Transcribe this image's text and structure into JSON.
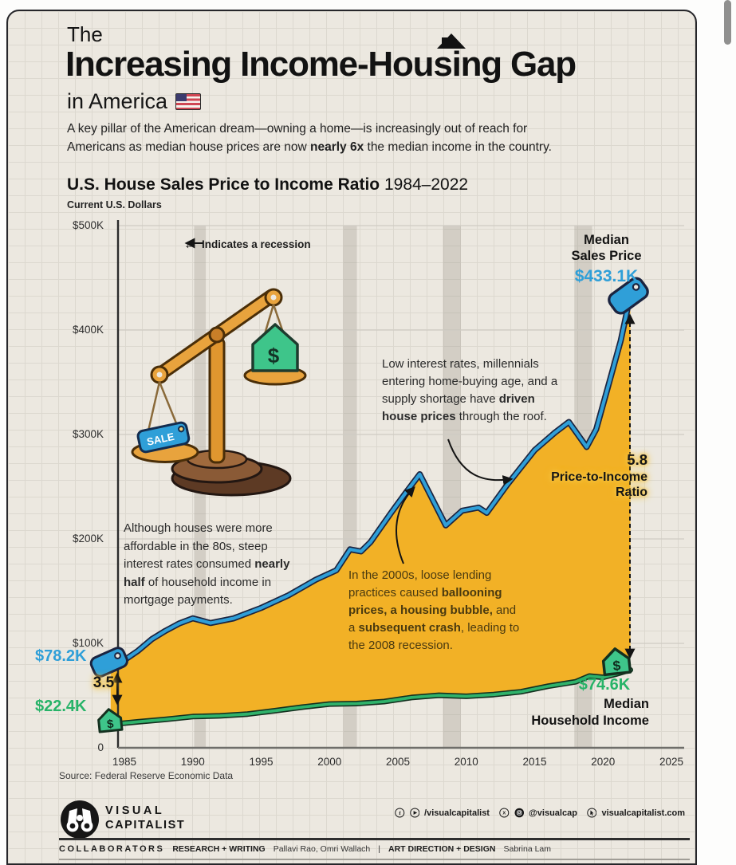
{
  "header": {
    "kicker": "The",
    "title": "Increasing Income-Housing Gap",
    "subtitle": "in America",
    "intro_parts": [
      {
        "t": "A key pillar of the American dream—owning a home—is increasingly out of reach for Americans as median house prices are now "
      },
      {
        "t": "nearly 6x",
        "b": true
      },
      {
        "t": " the median income in the country."
      }
    ]
  },
  "chart_heading": {
    "title": "U.S. House Sales Price to Income Ratio",
    "years": "1984–2022",
    "unit": "Current U.S. Dollars"
  },
  "chart_data": {
    "type": "area",
    "title": "U.S. House Sales Price to Income Ratio 1984–2022",
    "ylabel": "Current U.S. Dollars",
    "xlim": [
      1984,
      2025.5
    ],
    "ylim_thousands_usd": [
      0,
      500
    ],
    "grid": true,
    "fill_between_color": "#F2B126",
    "x_ticks": [
      "1985",
      "1990",
      "1995",
      "2000",
      "2005",
      "2010",
      "2015",
      "2020",
      "2025"
    ],
    "x_tick_values": [
      1985,
      1990,
      1995,
      2000,
      2005,
      2010,
      2015,
      2020,
      2025
    ],
    "y_ticks": [
      "$500K",
      "$400K",
      "$300K",
      "$200K",
      "$100K",
      "0"
    ],
    "y_tick_values": [
      500,
      400,
      300,
      200,
      100,
      0
    ],
    "recession_bands_years": [
      [
        1990.1,
        1990.95
      ],
      [
        2001.0,
        2002.0
      ],
      [
        2008.3,
        2009.6
      ],
      [
        2017.9,
        2019.2
      ]
    ],
    "series": [
      {
        "name": "Median Sales Price",
        "color": "#2F9FD8",
        "outline": "#1B2440",
        "unit": "thousand USD",
        "start_label": "$78.2K",
        "end_label": "$433.1K",
        "points": [
          [
            1984,
            78.2
          ],
          [
            1985,
            84
          ],
          [
            1986,
            93
          ],
          [
            1987,
            104
          ],
          [
            1988,
            112
          ],
          [
            1989,
            119
          ],
          [
            1990,
            124
          ],
          [
            1991.3,
            119.5
          ],
          [
            1993,
            124
          ],
          [
            1995,
            134
          ],
          [
            1997,
            146
          ],
          [
            1999,
            161
          ],
          [
            2000.5,
            170
          ],
          [
            2001.5,
            190
          ],
          [
            2002.3,
            188
          ],
          [
            2003,
            197
          ],
          [
            2004.5,
            225
          ],
          [
            2005.5,
            243
          ],
          [
            2006.6,
            262
          ],
          [
            2008.5,
            213
          ],
          [
            2009.7,
            227
          ],
          [
            2010.9,
            230
          ],
          [
            2011.5,
            225
          ],
          [
            2013,
            252
          ],
          [
            2015,
            285
          ],
          [
            2016.5,
            302
          ],
          [
            2017.5,
            312
          ],
          [
            2018.8,
            288
          ],
          [
            2019.5,
            305
          ],
          [
            2020.5,
            352
          ],
          [
            2021.3,
            390
          ],
          [
            2022,
            433.1
          ]
        ]
      },
      {
        "name": "Median Household Income",
        "color": "#2FB26B",
        "outline": "#14301F",
        "unit": "thousand USD",
        "start_label": "$22.4K",
        "end_label": "$74.6K",
        "points": [
          [
            1984,
            22.4
          ],
          [
            1986,
            24.9
          ],
          [
            1988,
            27.2
          ],
          [
            1990,
            29.9
          ],
          [
            1992,
            30.6
          ],
          [
            1994,
            32.3
          ],
          [
            1996,
            35.5
          ],
          [
            1998,
            38.9
          ],
          [
            2000,
            41.9
          ],
          [
            2002,
            42.4
          ],
          [
            2004,
            44.3
          ],
          [
            2006,
            48.2
          ],
          [
            2008,
            50.3
          ],
          [
            2010,
            49.3
          ],
          [
            2012,
            51
          ],
          [
            2014,
            53.7
          ],
          [
            2016,
            59
          ],
          [
            2018,
            63.2
          ],
          [
            2019,
            68.7
          ],
          [
            2020,
            67.5
          ],
          [
            2021,
            70.8
          ],
          [
            2022,
            74.6
          ]
        ]
      }
    ],
    "ratio_markers": {
      "start": {
        "year": 1984,
        "value": "3.5"
      },
      "end": {
        "year": 2022,
        "value": "5.8",
        "label": "Price-to-Income Ratio"
      }
    }
  },
  "chart_labels": {
    "recession_arrow": "←",
    "recession_note": "Indicates a recession",
    "msp_line1": "Median",
    "msp_line2": "Sales Price",
    "msp_value": "$433.1K",
    "start_price": "$78.2K",
    "start_income": "$22.4K",
    "ratio_start": "3.5",
    "ratio_end": "5.8",
    "ratio_label_1": "Price-to-Income",
    "ratio_label_2": "Ratio",
    "income_value": "$74.6K",
    "income_line1": "Median",
    "income_line2": "Household Income"
  },
  "annotations": {
    "eighties_parts": [
      {
        "t": "Although houses were more affordable in the 80s, steep interest rates consumed "
      },
      {
        "t": "nearly half",
        "b": true
      },
      {
        "t": " of household income in mortgage payments."
      }
    ],
    "rates_parts": [
      {
        "t": "Low interest rates, millennials entering home-buying age, and a supply shortage have "
      },
      {
        "t": "driven house prices",
        "b": true
      },
      {
        "t": " through the roof."
      }
    ],
    "lending_parts": [
      {
        "t": "In the 2000s, loose lending practices caused "
      },
      {
        "t": "ballooning prices, a housing bubble,",
        "b": true
      },
      {
        "t": " and a "
      },
      {
        "t": "subsequent crash",
        "b": true
      },
      {
        "t": ", leading to the 2008 recession."
      }
    ]
  },
  "illustration": {
    "sale_tag_text": "SALE",
    "house_symbol": "$"
  },
  "footer": {
    "source": "Source: Federal Reserve Economic Data",
    "logo_line1": "VISUAL",
    "logo_line2": "CAPITALIST",
    "social_handle": "/visualcapitalist",
    "social_handle2": "@visualcap",
    "website": "visualcapitalist.com",
    "collaborators_label": "COLLABORATORS",
    "research_label": "RESEARCH + WRITING",
    "research_names": "Pallavi Rao, Omri Wallach",
    "pipe": "|",
    "design_label": "ART DIRECTION + DESIGN",
    "design_names": "Sabrina Lam"
  }
}
